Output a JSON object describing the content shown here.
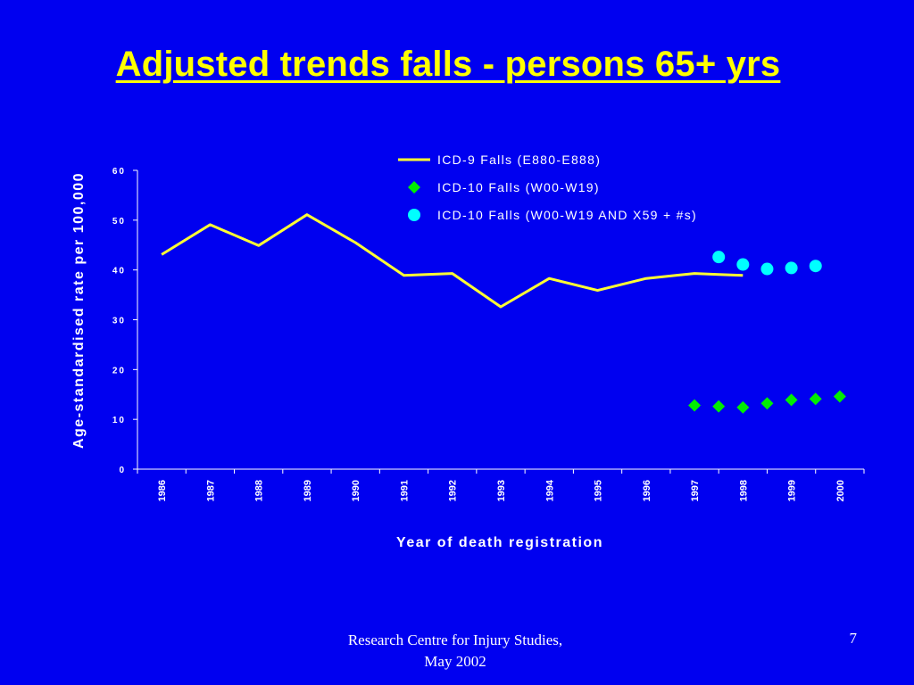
{
  "slide": {
    "title": "Adjusted trends falls - persons 65+ yrs",
    "footer_line1": "Research Centre for Injury Studies,",
    "footer_line2": "May 2002",
    "page_number": "7"
  },
  "colors": {
    "background": "#0000f0",
    "title": "#ffff00",
    "icd9_line": "#ffff33",
    "icd10_diamond": "#00ee00",
    "icd10_circle": "#00ffff",
    "axis": "#ffffff"
  },
  "chart_data": {
    "type": "line",
    "title": "",
    "xlabel": "Year of death registration",
    "ylabel": "Age-standardised rate per 100,000",
    "categories": [
      "1986",
      "1987",
      "1988",
      "1989",
      "1990",
      "1991",
      "1992",
      "1993",
      "1994",
      "1995",
      "1996",
      "1997",
      "1998",
      "1999",
      "2000"
    ],
    "ylim": [
      0,
      60
    ],
    "yticks": [
      0,
      10,
      20,
      30,
      40,
      50,
      60
    ],
    "ytick_labels": [
      "0",
      "10",
      "20",
      "30",
      "40",
      "50",
      "60"
    ],
    "grid": false,
    "legend_position": "top-right",
    "series": [
      {
        "name": "ICD-9 Falls (E880-E888)",
        "style": "line",
        "color": "#ffff33",
        "x": [
          1986,
          1987,
          1988,
          1989,
          1990,
          1991,
          1992,
          1993,
          1994,
          1995,
          1996,
          1997,
          1997.5,
          1998
        ],
        "values": [
          43.1,
          49.1,
          44.9,
          51.1,
          45.5,
          38.9,
          39.3,
          32.6,
          38.3,
          35.9,
          38.3,
          39.3,
          39.1,
          38.9
        ]
      },
      {
        "name": "ICD-10 Falls (W00-W19)",
        "style": "diamond",
        "color": "#00ee00",
        "x": [
          1997,
          1997.5,
          1998,
          1998.5,
          1999,
          1999.5,
          2000
        ],
        "values": [
          12.8,
          12.6,
          12.4,
          13.2,
          13.9,
          14.1,
          14.6
        ]
      },
      {
        "name": "ICD-10 Falls (W00-W19 AND X59 + #s)",
        "style": "circle",
        "color": "#00ffff",
        "x": [
          1997.5,
          1998,
          1998.5,
          1999,
          1999.5
        ],
        "values": [
          42.6,
          41.1,
          40.2,
          40.4,
          40.8
        ]
      }
    ]
  }
}
